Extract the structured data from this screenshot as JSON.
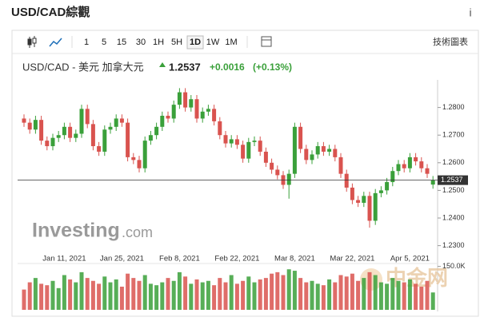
{
  "header": {
    "title": "USD/CAD綜觀",
    "info": "i"
  },
  "toolbar": {
    "intervals": [
      "1",
      "5",
      "15",
      "30",
      "1H",
      "5H",
      "1D",
      "1W",
      "1M"
    ],
    "selected": "1D",
    "technical": "技術圖表"
  },
  "quote": {
    "instrument": "USD/CAD - 美元 加拿大元",
    "change": "+0.0016",
    "change_percent": "(+0.13%)"
  },
  "watermark": [
    "Investing",
    ".com",
    "中金网"
  ],
  "chart_data": {
    "type": "candlestick",
    "up_color": "#3aa03a",
    "down_color": "#d9534f",
    "grid": false,
    "categories": [
      null,
      null,
      null,
      null,
      null,
      null,
      null,
      "Jan 11, 2021",
      null,
      null,
      null,
      null,
      null,
      null,
      null,
      null,
      null,
      "Jan 25, 2021",
      null,
      null,
      null,
      null,
      null,
      null,
      null,
      null,
      null,
      "Feb 8, 2021",
      null,
      null,
      null,
      null,
      null,
      null,
      null,
      null,
      null,
      "Feb 22, 2021",
      null,
      null,
      null,
      null,
      null,
      null,
      null,
      null,
      null,
      "Mar 8, 2021",
      null,
      null,
      null,
      null,
      null,
      null,
      null,
      null,
      null,
      "Mar 22, 2021",
      null,
      null,
      null,
      null,
      null,
      null,
      null,
      null,
      null,
      "Apr 5, 2021",
      null,
      null,
      null,
      null
    ],
    "open": [
      1.276,
      1.2745,
      1.272,
      1.2755,
      1.268,
      1.266,
      1.269,
      1.27,
      1.273,
      1.269,
      1.2705,
      1.2795,
      1.274,
      1.266,
      1.264,
      1.272,
      1.273,
      1.276,
      1.2745,
      1.262,
      1.261,
      1.258,
      1.268,
      1.27,
      1.273,
      1.277,
      1.276,
      1.281,
      1.2855,
      1.28,
      1.283,
      1.276,
      1.2785,
      1.2795,
      1.275,
      1.27,
      1.267,
      1.2685,
      1.2665,
      1.2615,
      1.2675,
      1.268,
      1.264,
      1.26,
      1.2575,
      1.2555,
      1.252,
      1.256,
      1.273,
      1.265,
      1.261,
      1.263,
      1.266,
      1.264,
      1.265,
      1.262,
      1.256,
      1.251,
      1.2465,
      1.2455,
      1.248,
      1.239,
      1.249,
      1.25,
      1.253,
      1.257,
      1.2595,
      1.258,
      1.262,
      1.2605,
      1.258,
      1.2521
    ],
    "high": [
      1.2775,
      1.276,
      1.277,
      1.277,
      1.2695,
      1.2705,
      1.2715,
      1.2745,
      1.2745,
      1.272,
      1.281,
      1.281,
      1.2755,
      1.2675,
      1.2735,
      1.2745,
      1.2775,
      1.2775,
      1.276,
      1.2635,
      1.2625,
      1.2695,
      1.2715,
      1.2745,
      1.2785,
      1.2785,
      1.2825,
      1.287,
      1.287,
      1.2845,
      1.2845,
      1.28,
      1.281,
      1.281,
      1.2765,
      1.2715,
      1.27,
      1.27,
      1.268,
      1.269,
      1.2695,
      1.2695,
      1.2655,
      1.2615,
      1.259,
      1.257,
      1.2575,
      1.2745,
      1.2745,
      1.2665,
      1.2645,
      1.2675,
      1.2675,
      1.2665,
      1.2665,
      1.2635,
      1.2575,
      1.2525,
      1.248,
      1.2495,
      1.2495,
      1.2505,
      1.2515,
      1.2545,
      1.2585,
      1.261,
      1.261,
      1.2635,
      1.2635,
      1.262,
      1.2595,
      1.2552
    ],
    "low": [
      1.273,
      1.2705,
      1.2705,
      1.2665,
      1.2645,
      1.2645,
      1.2675,
      1.2685,
      1.2675,
      1.2675,
      1.269,
      1.2725,
      1.2645,
      1.2625,
      1.2625,
      1.2705,
      1.2715,
      1.273,
      1.2605,
      1.2595,
      1.2565,
      1.2565,
      1.2665,
      1.2685,
      1.2715,
      1.2745,
      1.2745,
      1.2795,
      1.2785,
      1.2785,
      1.2745,
      1.2745,
      1.277,
      1.2735,
      1.2685,
      1.2655,
      1.2655,
      1.265,
      1.26,
      1.26,
      1.266,
      1.2625,
      1.2585,
      1.256,
      1.254,
      1.2505,
      1.247,
      1.2545,
      1.2635,
      1.2595,
      1.2595,
      1.2615,
      1.2625,
      1.2625,
      1.2605,
      1.2545,
      1.2495,
      1.245,
      1.244,
      1.244,
      1.2365,
      1.2375,
      1.2475,
      1.2485,
      1.2515,
      1.2555,
      1.2565,
      1.2565,
      1.259,
      1.2565,
      1.2545,
      1.2506
    ],
    "close": [
      1.2745,
      1.272,
      1.2755,
      1.268,
      1.266,
      1.269,
      1.27,
      1.273,
      1.269,
      1.2705,
      1.2795,
      1.274,
      1.266,
      1.264,
      1.272,
      1.273,
      1.276,
      1.2745,
      1.262,
      1.261,
      1.258,
      1.268,
      1.27,
      1.273,
      1.277,
      1.276,
      1.281,
      1.2855,
      1.28,
      1.283,
      1.276,
      1.2785,
      1.2795,
      1.275,
      1.27,
      1.267,
      1.2685,
      1.2665,
      1.2615,
      1.2675,
      1.268,
      1.264,
      1.26,
      1.2575,
      1.2555,
      1.252,
      1.256,
      1.273,
      1.265,
      1.261,
      1.263,
      1.266,
      1.264,
      1.265,
      1.262,
      1.256,
      1.251,
      1.2465,
      1.2455,
      1.248,
      1.239,
      1.249,
      1.25,
      1.253,
      1.257,
      1.2595,
      1.258,
      1.262,
      1.2605,
      1.258,
      1.256,
      1.2537
    ],
    "volume": [
      70000,
      95000,
      110000,
      90000,
      85000,
      100000,
      75000,
      120000,
      105000,
      95000,
      130000,
      110000,
      100000,
      90000,
      115000,
      95000,
      105000,
      80000,
      125000,
      110000,
      100000,
      120000,
      90000,
      85000,
      95000,
      110000,
      100000,
      130000,
      115000,
      90000,
      105000,
      95000,
      100000,
      85000,
      110000,
      95000,
      120000,
      90000,
      100000,
      115000,
      95000,
      105000,
      110000,
      125000,
      130000,
      120000,
      140000,
      135000,
      110000,
      95000,
      100000,
      90000,
      85000,
      105000,
      95000,
      120000,
      115000,
      125000,
      100000,
      110000,
      130000,
      120000,
      95000,
      90000,
      110000,
      100000,
      95000,
      105000,
      90000,
      80000,
      100000,
      60000
    ],
    "ylim": [
      1.227,
      1.29
    ],
    "yticks": [
      {
        "value": 1.23,
        "label": "1.2300"
      },
      {
        "value": 1.24,
        "label": "1.2400"
      },
      {
        "value": 1.25,
        "label": "1.2500"
      },
      {
        "value": 1.26,
        "label": "1.2600"
      },
      {
        "value": 1.27,
        "label": "1.2700"
      },
      {
        "value": 1.28,
        "label": "1.2800"
      }
    ],
    "volume_ylim": [
      0,
      160000
    ],
    "volume_yticks": [
      {
        "value": 150000,
        "label": "150.0K"
      }
    ]
  }
}
